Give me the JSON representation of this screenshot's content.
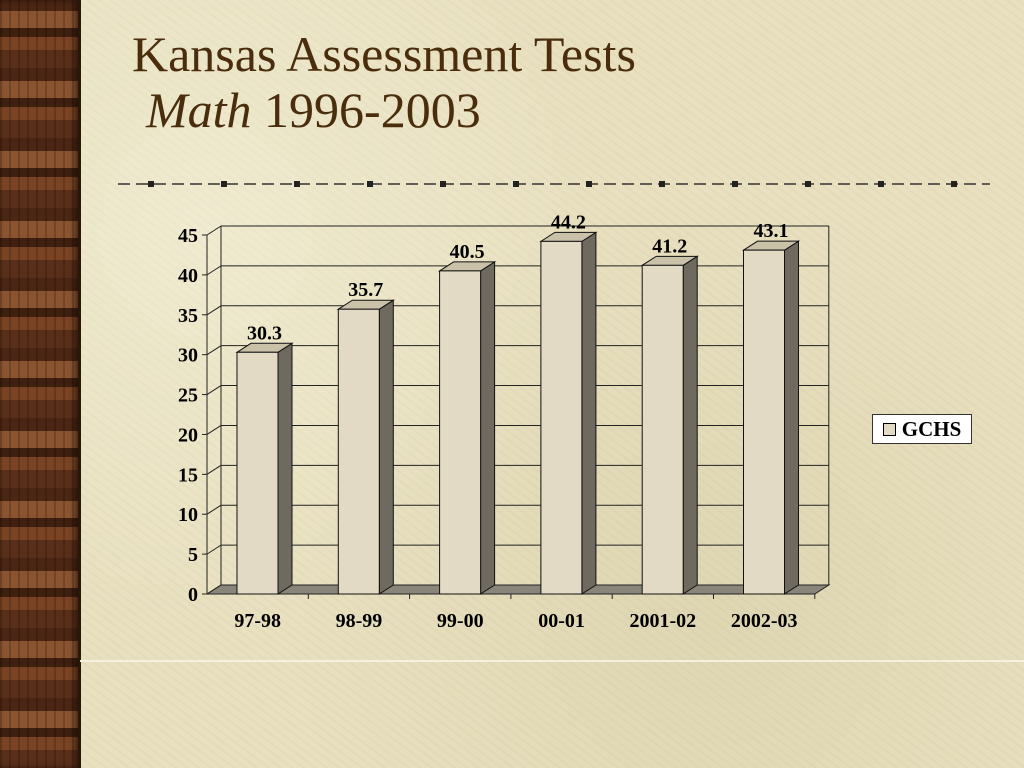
{
  "slide": {
    "title_line1": "Kansas Assessment Tests",
    "title_subject": "Math",
    "title_years": "1996-2003"
  },
  "colors": {
    "title": "#4a2d0c",
    "bar_front": "#e2dac4",
    "bar_side": "#6e6a60",
    "bar_top": "#c9c1a8"
  },
  "chart_data": {
    "type": "bar",
    "categories": [
      "97-98",
      "98-99",
      "99-00",
      "00-01",
      "2001-02",
      "2002-03"
    ],
    "series": [
      {
        "name": "GCHS",
        "values": [
          30.3,
          35.7,
          40.5,
          44.2,
          41.2,
          43.1
        ]
      }
    ],
    "data_labels": [
      "30.3",
      "35.7",
      "40.5",
      "44.2",
      "41.2",
      "43.1"
    ],
    "ylim": [
      0,
      45
    ],
    "yticks": [
      0,
      5,
      10,
      15,
      20,
      25,
      30,
      35,
      40,
      45
    ],
    "grid": true,
    "three_d": true,
    "legend": {
      "position": "right",
      "label": "GCHS"
    }
  }
}
